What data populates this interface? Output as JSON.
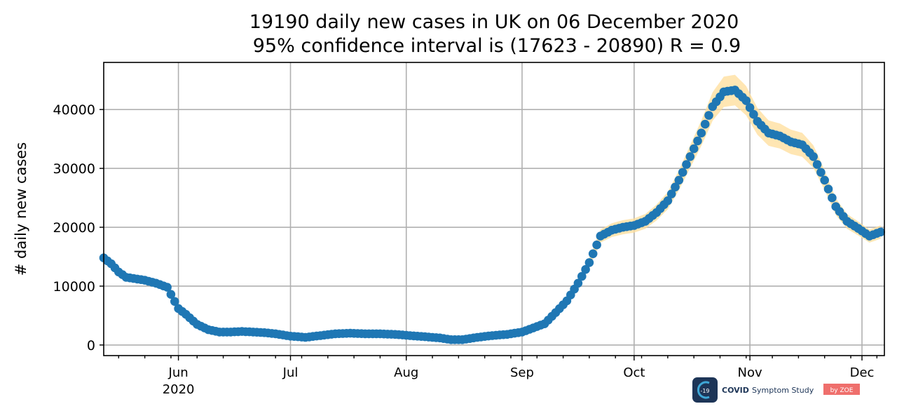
{
  "chart_data": {
    "type": "scatter",
    "title": "19190 daily new cases in UK on 06 December 2020",
    "subtitle": "95% confidence interval is (17623 - 20890) R = 0.9",
    "xlabel": "",
    "ylabel": "# daily new cases",
    "xlim": [
      "2020-05-12",
      "2020-12-07"
    ],
    "ylim": [
      -1800,
      48000
    ],
    "y_ticks": [
      0,
      10000,
      20000,
      30000,
      40000
    ],
    "x_ticks": [
      {
        "date": "2020-06-01",
        "label": "Jun",
        "sublabel": "2020"
      },
      {
        "date": "2020-07-01",
        "label": "Jul"
      },
      {
        "date": "2020-08-01",
        "label": "Aug"
      },
      {
        "date": "2020-09-01",
        "label": "Sep"
      },
      {
        "date": "2020-10-01",
        "label": "Oct"
      },
      {
        "date": "2020-11-01",
        "label": "Nov"
      },
      {
        "date": "2020-12-01",
        "label": "Dec"
      }
    ],
    "grid": true,
    "series": [
      {
        "name": "",
        "color": "#1f77b4",
        "band_color": "#ffdd99",
        "points": [
          [
            "2020-05-12",
            14800
          ],
          [
            "2020-05-14",
            13800
          ],
          [
            "2020-05-16",
            12400
          ],
          [
            "2020-05-18",
            11500
          ],
          [
            "2020-05-20",
            11300
          ],
          [
            "2020-05-23",
            11000
          ],
          [
            "2020-05-26",
            10500
          ],
          [
            "2020-05-29",
            9800
          ],
          [
            "2020-06-01",
            6200
          ],
          [
            "2020-06-03",
            5200
          ],
          [
            "2020-06-06",
            3500
          ],
          [
            "2020-06-09",
            2600
          ],
          [
            "2020-06-12",
            2200
          ],
          [
            "2020-06-15",
            2200
          ],
          [
            "2020-06-18",
            2300
          ],
          [
            "2020-06-21",
            2200
          ],
          [
            "2020-06-24",
            2100
          ],
          [
            "2020-06-27",
            1900
          ],
          [
            "2020-07-01",
            1500
          ],
          [
            "2020-07-05",
            1300
          ],
          [
            "2020-07-09",
            1600
          ],
          [
            "2020-07-13",
            1900
          ],
          [
            "2020-07-17",
            2000
          ],
          [
            "2020-07-21",
            1900
          ],
          [
            "2020-07-25",
            1900
          ],
          [
            "2020-07-29",
            1800
          ],
          [
            "2020-08-02",
            1600
          ],
          [
            "2020-08-06",
            1400
          ],
          [
            "2020-08-10",
            1200
          ],
          [
            "2020-08-13",
            900
          ],
          [
            "2020-08-16",
            900
          ],
          [
            "2020-08-20",
            1300
          ],
          [
            "2020-08-24",
            1600
          ],
          [
            "2020-08-28",
            1800
          ],
          [
            "2020-09-01",
            2200
          ],
          [
            "2020-09-04",
            2900
          ],
          [
            "2020-09-07",
            3600
          ],
          [
            "2020-09-10",
            5500
          ],
          [
            "2020-09-13",
            7500
          ],
          [
            "2020-09-16",
            10500
          ],
          [
            "2020-09-19",
            14000
          ],
          [
            "2020-09-22",
            18500
          ],
          [
            "2020-09-25",
            19500
          ],
          [
            "2020-09-28",
            20000
          ],
          [
            "2020-10-01",
            20300
          ],
          [
            "2020-10-04",
            21000
          ],
          [
            "2020-10-07",
            22500
          ],
          [
            "2020-10-10",
            24500
          ],
          [
            "2020-10-13",
            28000
          ],
          [
            "2020-10-16",
            32000
          ],
          [
            "2020-10-19",
            36000
          ],
          [
            "2020-10-22",
            40500
          ],
          [
            "2020-10-25",
            43000
          ],
          [
            "2020-10-28",
            43300
          ],
          [
            "2020-10-31",
            41500
          ],
          [
            "2020-11-03",
            38000
          ],
          [
            "2020-11-06",
            36000
          ],
          [
            "2020-11-09",
            35500
          ],
          [
            "2020-11-12",
            34500
          ],
          [
            "2020-11-15",
            34000
          ],
          [
            "2020-11-18",
            32000
          ],
          [
            "2020-11-21",
            28000
          ],
          [
            "2020-11-24",
            23500
          ],
          [
            "2020-11-27",
            21000
          ],
          [
            "2020-11-30",
            19800
          ],
          [
            "2020-12-03",
            18500
          ],
          [
            "2020-12-06",
            19190
          ]
        ]
      }
    ]
  },
  "logo": {
    "badge_text": "-19",
    "name_bold": "COVID",
    "name_rest": "Symptom Study",
    "by_text": "by ZOE",
    "badge_color": "#1d3557",
    "ring_color": "#3fa7d6",
    "zoe_color": "#ef6f6c"
  }
}
